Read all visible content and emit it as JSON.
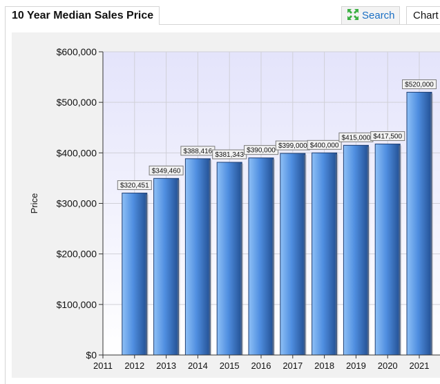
{
  "header": {
    "title": "10 Year Median Sales Price",
    "search_label": "Search",
    "chart_tab_label": "Chart"
  },
  "icons": {
    "search": "expand-arrows-icon"
  },
  "colors": {
    "bar_light": "#8ec0f6",
    "bar_mid": "#4f8ee0",
    "bar_dark": "#224f92",
    "plot_top": "#e4e4fb",
    "plot_bottom": "#ffffff",
    "link": "#1a6fc4"
  },
  "chart_data": {
    "type": "bar",
    "ylabel": "Price",
    "ylim": [
      0,
      600000
    ],
    "yticks": [
      "$0",
      "$100,000",
      "$200,000",
      "$300,000",
      "$400,000",
      "$500,000",
      "$600,000"
    ],
    "xticks": [
      "2011",
      "2012",
      "2013",
      "2014",
      "2015",
      "2016",
      "2017",
      "2018",
      "2019",
      "2020",
      "2021"
    ],
    "categories": [
      "2012",
      "2013",
      "2014",
      "2015",
      "2016",
      "2017",
      "2018",
      "2019",
      "2020",
      "2021"
    ],
    "values": [
      320451,
      349460,
      388416,
      381343,
      390000,
      399000,
      400000,
      415000,
      417500,
      520000
    ],
    "data_labels": [
      "$320,451",
      "$349,460",
      "$388,416",
      "$381,343",
      "$390,000",
      "$399,000",
      "$400,000",
      "$415,000",
      "$417,500",
      "$520,000"
    ],
    "grid": true
  }
}
